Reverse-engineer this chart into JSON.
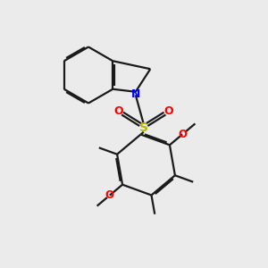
{
  "bg_color": "#ebebeb",
  "bond_color": "#1a1a1a",
  "N_color": "#0000ff",
  "O_color": "#ff0000",
  "S_color": "#b8b800",
  "lw": 1.6,
  "doff": 0.055,
  "fig_w": 3.0,
  "fig_h": 3.0,
  "dpi": 100,
  "xlim": [
    0,
    10
  ],
  "ylim": [
    0,
    10
  ]
}
